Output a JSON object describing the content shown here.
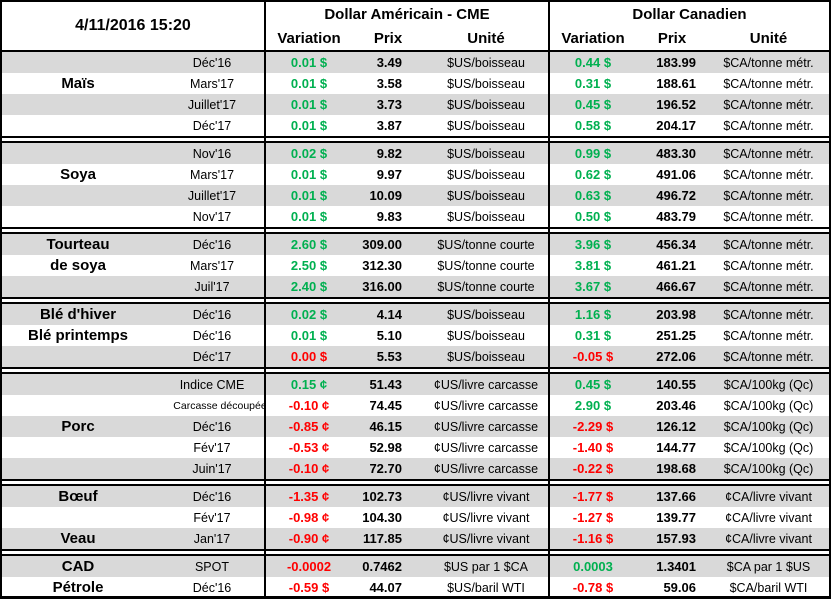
{
  "timestamp": "4/11/2016 15:20",
  "header": {
    "us_group_title": "Dollar Américain - CME",
    "ca_group_title": "Dollar Canadien",
    "variation_label": "Variation",
    "prix_label": "Prix",
    "unite_label": "Unité"
  },
  "colors": {
    "positive_green": "#00B050",
    "negative_red": "#FF0000",
    "row_band_gray": "#D9D9D9",
    "border_black": "#000000"
  },
  "groups": [
    {
      "id": "mais",
      "rows": [
        {
          "label": "",
          "contract": "Déc'16",
          "us_var": "0.01 $",
          "us_dir": "pos",
          "us_prix": "3.49",
          "us_unit": "$US/boisseau",
          "ca_var": "0.44 $",
          "ca_dir": "pos",
          "ca_prix": "183.99",
          "ca_unit": "$CA/tonne métr."
        },
        {
          "label": "Maïs",
          "contract": "Mars'17",
          "us_var": "0.01 $",
          "us_dir": "pos",
          "us_prix": "3.58",
          "us_unit": "$US/boisseau",
          "ca_var": "0.31 $",
          "ca_dir": "pos",
          "ca_prix": "188.61",
          "ca_unit": "$CA/tonne métr."
        },
        {
          "label": "",
          "contract": "Juillet'17",
          "us_var": "0.01 $",
          "us_dir": "pos",
          "us_prix": "3.73",
          "us_unit": "$US/boisseau",
          "ca_var": "0.45 $",
          "ca_dir": "pos",
          "ca_prix": "196.52",
          "ca_unit": "$CA/tonne métr."
        },
        {
          "label": "",
          "contract": "Déc'17",
          "us_var": "0.01 $",
          "us_dir": "pos",
          "us_prix": "3.87",
          "us_unit": "$US/boisseau",
          "ca_var": "0.58 $",
          "ca_dir": "pos",
          "ca_prix": "204.17",
          "ca_unit": "$CA/tonne métr."
        }
      ]
    },
    {
      "id": "soya",
      "rows": [
        {
          "label": "",
          "contract": "Nov'16",
          "us_var": "0.02 $",
          "us_dir": "pos",
          "us_prix": "9.82",
          "us_unit": "$US/boisseau",
          "ca_var": "0.99 $",
          "ca_dir": "pos",
          "ca_prix": "483.30",
          "ca_unit": "$CA/tonne métr."
        },
        {
          "label": "Soya",
          "contract": "Mars'17",
          "us_var": "0.01 $",
          "us_dir": "pos",
          "us_prix": "9.97",
          "us_unit": "$US/boisseau",
          "ca_var": "0.62 $",
          "ca_dir": "pos",
          "ca_prix": "491.06",
          "ca_unit": "$CA/tonne métr."
        },
        {
          "label": "",
          "contract": "Juillet'17",
          "us_var": "0.01 $",
          "us_dir": "pos",
          "us_prix": "10.09",
          "us_unit": "$US/boisseau",
          "ca_var": "0.63 $",
          "ca_dir": "pos",
          "ca_prix": "496.72",
          "ca_unit": "$CA/tonne métr."
        },
        {
          "label": "",
          "contract": "Nov'17",
          "us_var": "0.01 $",
          "us_dir": "pos",
          "us_prix": "9.83",
          "us_unit": "$US/boisseau",
          "ca_var": "0.50 $",
          "ca_dir": "pos",
          "ca_prix": "483.79",
          "ca_unit": "$CA/tonne métr."
        }
      ]
    },
    {
      "id": "tourteau-de-soya",
      "rows": [
        {
          "label": "Tourteau",
          "contract": "Déc'16",
          "us_var": "2.60 $",
          "us_dir": "pos",
          "us_prix": "309.00",
          "us_unit": "$US/tonne courte",
          "ca_var": "3.96 $",
          "ca_dir": "pos",
          "ca_prix": "456.34",
          "ca_unit": "$CA/tonne métr."
        },
        {
          "label": "de soya",
          "contract": "Mars'17",
          "us_var": "2.50 $",
          "us_dir": "pos",
          "us_prix": "312.30",
          "us_unit": "$US/tonne courte",
          "ca_var": "3.81 $",
          "ca_dir": "pos",
          "ca_prix": "461.21",
          "ca_unit": "$CA/tonne métr."
        },
        {
          "label": "",
          "contract": "Juil'17",
          "us_var": "2.40 $",
          "us_dir": "pos",
          "us_prix": "316.00",
          "us_unit": "$US/tonne courte",
          "ca_var": "3.67 $",
          "ca_dir": "pos",
          "ca_prix": "466.67",
          "ca_unit": "$CA/tonne métr."
        }
      ]
    },
    {
      "id": "ble",
      "rows": [
        {
          "label": "Blé d'hiver",
          "contract": "Déc'16",
          "us_var": "0.02 $",
          "us_dir": "pos",
          "us_prix": "4.14",
          "us_unit": "$US/boisseau",
          "ca_var": "1.16 $",
          "ca_dir": "pos",
          "ca_prix": "203.98",
          "ca_unit": "$CA/tonne métr."
        },
        {
          "label": "Blé printemps",
          "contract": "Déc'16",
          "us_var": "0.01 $",
          "us_dir": "pos",
          "us_prix": "5.10",
          "us_unit": "$US/boisseau",
          "ca_var": "0.31 $",
          "ca_dir": "pos",
          "ca_prix": "251.25",
          "ca_unit": "$CA/tonne métr."
        },
        {
          "label": "",
          "contract": "Déc'17",
          "us_var": "0.00 $",
          "us_dir": "neg",
          "us_prix": "5.53",
          "us_unit": "$US/boisseau",
          "ca_var": "-0.05 $",
          "ca_dir": "neg",
          "ca_prix": "272.06",
          "ca_unit": "$CA/tonne métr."
        }
      ]
    },
    {
      "id": "porc",
      "rows": [
        {
          "label": "",
          "contract": "Indice CME",
          "us_var": "0.15 ¢",
          "us_dir": "pos",
          "us_prix": "51.43",
          "us_unit": "¢US/livre carcasse",
          "ca_var": "0.45 $",
          "ca_dir": "pos",
          "ca_prix": "140.55",
          "ca_unit": "$CA/100kg (Qc)"
        },
        {
          "label": "",
          "contract": "Carcasse découpée",
          "small": true,
          "us_var": "-0.10 ¢",
          "us_dir": "neg",
          "us_prix": "74.45",
          "us_unit": "¢US/livre carcasse",
          "ca_var": "2.90 $",
          "ca_dir": "pos",
          "ca_prix": "203.46",
          "ca_unit": "$CA/100kg (Qc)"
        },
        {
          "label": "Porc",
          "contract": "Déc'16",
          "us_var": "-0.85 ¢",
          "us_dir": "neg",
          "us_prix": "46.15",
          "us_unit": "¢US/livre carcasse",
          "ca_var": "-2.29 $",
          "ca_dir": "neg",
          "ca_prix": "126.12",
          "ca_unit": "$CA/100kg (Qc)"
        },
        {
          "label": "",
          "contract": "Fév'17",
          "us_var": "-0.53 ¢",
          "us_dir": "neg",
          "us_prix": "52.98",
          "us_unit": "¢US/livre carcasse",
          "ca_var": "-1.40 $",
          "ca_dir": "neg",
          "ca_prix": "144.77",
          "ca_unit": "$CA/100kg (Qc)"
        },
        {
          "label": "",
          "contract": "Juin'17",
          "us_var": "-0.10 ¢",
          "us_dir": "neg",
          "us_prix": "72.70",
          "us_unit": "¢US/livre carcasse",
          "ca_var": "-0.22 $",
          "ca_dir": "neg",
          "ca_prix": "198.68",
          "ca_unit": "$CA/100kg (Qc)"
        }
      ]
    },
    {
      "id": "boeuf-veau",
      "rows": [
        {
          "label": "Bœuf",
          "contract": "Déc'16",
          "us_var": "-1.35 ¢",
          "us_dir": "neg",
          "us_prix": "102.73",
          "us_unit": "¢US/livre vivant",
          "ca_var": "-1.77 $",
          "ca_dir": "neg",
          "ca_prix": "137.66",
          "ca_unit": "¢CA/livre vivant"
        },
        {
          "label": "",
          "contract": "Fév'17",
          "us_var": "-0.98 ¢",
          "us_dir": "neg",
          "us_prix": "104.30",
          "us_unit": "¢US/livre vivant",
          "ca_var": "-1.27 $",
          "ca_dir": "neg",
          "ca_prix": "139.77",
          "ca_unit": "¢CA/livre vivant"
        },
        {
          "label": "Veau",
          "contract": "Jan'17",
          "us_var": "-0.90 ¢",
          "us_dir": "neg",
          "us_prix": "117.85",
          "us_unit": "¢US/livre vivant",
          "ca_var": "-1.16 $",
          "ca_dir": "neg",
          "ca_prix": "157.93",
          "ca_unit": "¢CA/livre vivant"
        }
      ]
    },
    {
      "id": "cad-petrole",
      "rows": [
        {
          "label": "CAD",
          "contract": "SPOT",
          "us_var": "-0.0002",
          "us_dir": "neg",
          "us_prix": "0.7462",
          "us_unit": "$US par 1 $CA",
          "ca_var": "0.0003",
          "ca_dir": "pos",
          "ca_prix": "1.3401",
          "ca_unit": "$CA par 1 $US"
        },
        {
          "label": "Pétrole",
          "contract": "Déc'16",
          "us_var": "-0.59 $",
          "us_dir": "neg",
          "us_prix": "44.07",
          "us_unit": "$US/baril WTI",
          "ca_var": "-0.78 $",
          "ca_dir": "neg",
          "ca_prix": "59.06",
          "ca_unit": "$CA/baril WTI"
        }
      ]
    }
  ]
}
